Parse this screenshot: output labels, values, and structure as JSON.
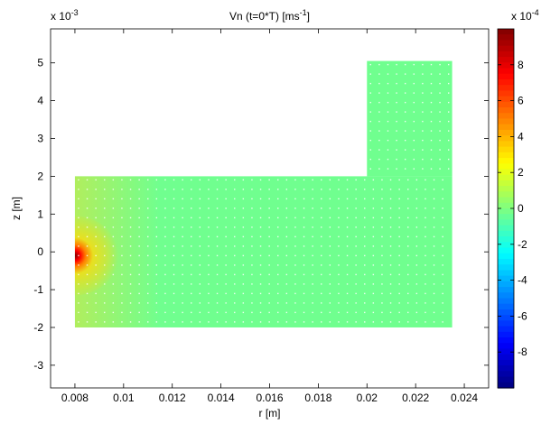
{
  "chart_data": {
    "type": "heatmap",
    "title": "Vn (t=0*T) [ms",
    "title_sup": "-1",
    "title_tail": "]",
    "xlabel": "r [m]",
    "ylabel": "z [m]",
    "x_exponent_base": "x 10",
    "x_exponent_sup": "-3",
    "cbar_exponent_base": "x 10",
    "cbar_exponent_sup": "-4",
    "xlim": [
      0.007,
      0.025
    ],
    "ylim": [
      -3.6,
      5.9
    ],
    "x_ticks": [
      "0.008",
      "0.01",
      "0.012",
      "0.014",
      "0.016",
      "0.018",
      "0.02",
      "0.022",
      "0.024"
    ],
    "x_tick_values": [
      0.008,
      0.01,
      0.012,
      0.014,
      0.016,
      0.018,
      0.02,
      0.022,
      0.024
    ],
    "y_ticks": [
      "-3",
      "-2",
      "-1",
      "0",
      "1",
      "2",
      "3",
      "4",
      "5"
    ],
    "y_tick_values": [
      -3,
      -2,
      -1,
      0,
      1,
      2,
      3,
      4,
      5
    ],
    "colorbar": {
      "colormap": "jet",
      "range": [
        -10,
        10
      ],
      "ticks": [
        "-8",
        "-6",
        "-4",
        "-2",
        "0",
        "2",
        "4",
        "6",
        "8"
      ],
      "tick_values": [
        -8,
        -6,
        -4,
        -2,
        0,
        2,
        4,
        6,
        8
      ]
    },
    "domain": {
      "lower_rect": {
        "r": [
          0.008,
          0.0235
        ],
        "z": [
          -2.0,
          2.0
        ]
      },
      "upper_rect": {
        "r": [
          0.02,
          0.0235
        ],
        "z": [
          2.0,
          5.05
        ]
      },
      "background_value": -0.3,
      "hotspot": {
        "r": 0.008,
        "z": -0.1,
        "peak_value": 9
      }
    },
    "grid": false,
    "legend": "none"
  }
}
